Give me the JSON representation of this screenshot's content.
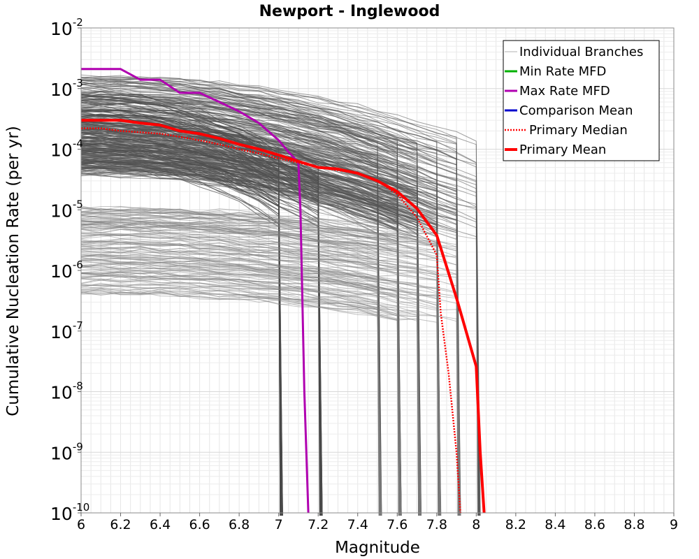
{
  "chart_data": {
    "type": "line",
    "title": "Newport - Inglewood",
    "xlabel": "Magnitude",
    "ylabel": "Cumulative Nucleation Rate (per yr)",
    "xlim": [
      6,
      9
    ],
    "ylim_log10": [
      -10,
      -2
    ],
    "y_scale": "log",
    "grid": true,
    "legend_position": "top-right",
    "x_ticks": [
      "6",
      "6.2",
      "6.4",
      "6.6",
      "6.8",
      "7",
      "7.2",
      "7.4",
      "7.6",
      "7.8",
      "8",
      "8.2",
      "8.4",
      "8.6",
      "8.8",
      "9"
    ],
    "y_ticks": [
      {
        "base": "10",
        "exp": "-2"
      },
      {
        "base": "10",
        "exp": "-3"
      },
      {
        "base": "10",
        "exp": "-4"
      },
      {
        "base": "10",
        "exp": "-5"
      },
      {
        "base": "10",
        "exp": "-6"
      },
      {
        "base": "10",
        "exp": "-7"
      },
      {
        "base": "10",
        "exp": "-8"
      },
      {
        "base": "10",
        "exp": "-9"
      },
      {
        "base": "10",
        "exp": "-10"
      }
    ],
    "legend": [
      {
        "label": "Individual Branches",
        "color": "#b0b0b0",
        "style": "thin"
      },
      {
        "label": "Min Rate MFD",
        "color": "#00b000",
        "style": "solid"
      },
      {
        "label": "Max Rate MFD",
        "color": "#b000b0",
        "style": "solid"
      },
      {
        "label": "Comparison Mean",
        "color": "#0000cc",
        "style": "solid"
      },
      {
        "label": "Primary Median",
        "color": "#ff0000",
        "style": "dotted"
      },
      {
        "label": "Primary Mean",
        "color": "#ff0000",
        "style": "thick"
      }
    ],
    "series": [
      {
        "name": "Max Rate MFD",
        "color": "#b000b0",
        "x": [
          6.0,
          6.2,
          6.3,
          6.4,
          6.5,
          6.6,
          6.7,
          6.8,
          6.9,
          7.0,
          7.05,
          7.1,
          7.11,
          7.13,
          7.15
        ],
        "y": [
          0.0021,
          0.0021,
          0.0014,
          0.0014,
          0.00085,
          0.00085,
          0.0006,
          0.00042,
          0.00027,
          0.00014,
          9e-05,
          6e-05,
          1e-05,
          1e-08,
          1e-10
        ]
      },
      {
        "name": "Primary Median",
        "color": "#ff0000",
        "x": [
          6.0,
          6.1,
          6.2,
          6.3,
          6.4,
          6.5,
          6.6,
          6.7,
          6.8,
          6.9,
          7.0,
          7.1,
          7.2,
          7.3,
          7.4,
          7.5,
          7.6,
          7.7,
          7.8,
          7.82,
          7.86,
          7.9,
          7.92
        ],
        "y": [
          0.00022,
          0.00022,
          0.0002,
          0.00019,
          0.00018,
          0.00016,
          0.00014,
          0.00012,
          0.0001,
          8.5e-05,
          7e-05,
          6e-05,
          5e-05,
          4.5e-05,
          4e-05,
          3e-05,
          1.8e-05,
          7.5e-06,
          1.8e-06,
          2e-07,
          2e-08,
          1e-09,
          1e-10
        ]
      },
      {
        "name": "Primary Mean",
        "color": "#ff0000",
        "x": [
          6.0,
          6.1,
          6.2,
          6.3,
          6.4,
          6.5,
          6.6,
          6.7,
          6.8,
          6.9,
          7.0,
          7.1,
          7.2,
          7.3,
          7.4,
          7.5,
          7.6,
          7.7,
          7.8,
          7.9,
          8.0,
          8.02,
          8.04
        ],
        "y": [
          0.0003,
          0.0003,
          0.0003,
          0.00027,
          0.00025,
          0.0002,
          0.00018,
          0.00015,
          0.00012,
          0.0001,
          8e-05,
          6.3e-05,
          5e-05,
          4.7e-05,
          4e-05,
          3e-05,
          2e-05,
          1.05e-05,
          3.8e-06,
          3.5e-07,
          2.6e-08,
          1e-09,
          1e-10
        ]
      }
    ]
  }
}
